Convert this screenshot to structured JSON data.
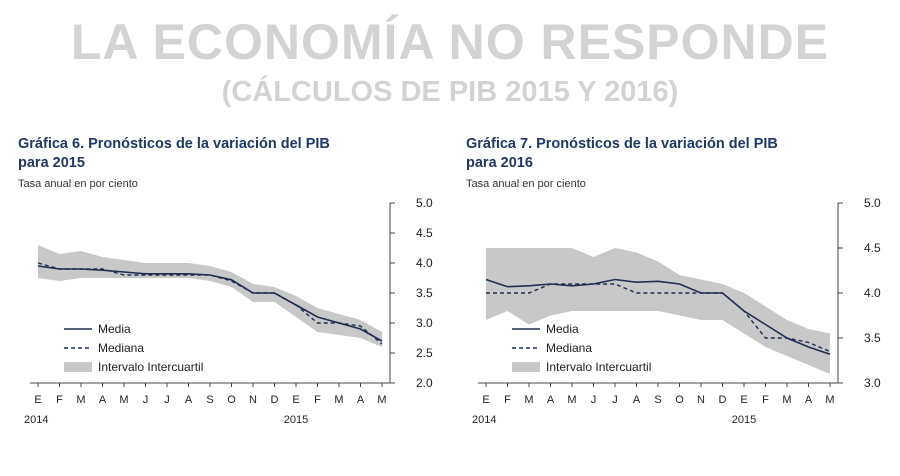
{
  "header": {
    "title": "LA ECONOMÍA NO RESPONDE",
    "subtitle": "(CÁLCULOS DE PIB 2015 Y 2016)"
  },
  "colors": {
    "media": "#1f2d4f",
    "band": "#c8c8c8",
    "title": "#1f3864",
    "headline": "#d3d3d3"
  },
  "chart_data": [
    {
      "type": "line",
      "title": "Gráfica 6. Pronósticos de la variación del PIB para 2015",
      "title_line1": "Gráfica 6. Pronósticos de la variación del PIB",
      "title_line2": "para 2015",
      "subtitle": "Tasa anual en por ciento",
      "categories": [
        "E",
        "F",
        "M",
        "A",
        "M",
        "J",
        "J",
        "A",
        "S",
        "O",
        "N",
        "D",
        "E",
        "F",
        "M",
        "A",
        "M"
      ],
      "year_labels": [
        {
          "label": "2014",
          "at": 0
        },
        {
          "label": "2015",
          "at": 12
        }
      ],
      "ylim": [
        2.0,
        5.0
      ],
      "yticks": [
        "2.0",
        "2.5",
        "3.0",
        "3.5",
        "4.0",
        "4.5",
        "5.0"
      ],
      "yaxis_position": "right",
      "legend_position": "bottom-left",
      "series": [
        {
          "name": "Media",
          "style": "solid",
          "values": [
            3.95,
            3.9,
            3.9,
            3.88,
            3.85,
            3.82,
            3.82,
            3.82,
            3.8,
            3.72,
            3.5,
            3.5,
            3.3,
            3.1,
            3.0,
            2.9,
            2.7
          ]
        },
        {
          "name": "Mediana",
          "style": "dashed",
          "values": [
            4.0,
            3.9,
            3.9,
            3.9,
            3.8,
            3.8,
            3.8,
            3.8,
            3.8,
            3.7,
            3.5,
            3.5,
            3.3,
            3.0,
            3.0,
            2.95,
            2.65
          ]
        }
      ],
      "band": {
        "name": "Intervalo Intercuartil",
        "upper": [
          4.3,
          4.15,
          4.2,
          4.1,
          4.05,
          4.0,
          4.0,
          4.0,
          3.95,
          3.85,
          3.65,
          3.6,
          3.45,
          3.25,
          3.15,
          3.05,
          2.85
        ],
        "lower": [
          3.75,
          3.7,
          3.75,
          3.75,
          3.75,
          3.75,
          3.75,
          3.75,
          3.7,
          3.6,
          3.35,
          3.35,
          3.1,
          2.85,
          2.8,
          2.75,
          2.6
        ]
      }
    },
    {
      "type": "line",
      "title": "Gráfica 7. Pronósticos de la variación del PIB para 2016",
      "title_line1": "Gráfica 7. Pronósticos de la variación del PIB",
      "title_line2": "para 2016",
      "subtitle": "Tasa anual en por ciento",
      "categories": [
        "E",
        "F",
        "M",
        "A",
        "M",
        "J",
        "J",
        "A",
        "S",
        "O",
        "N",
        "D",
        "E",
        "F",
        "M",
        "A",
        "M"
      ],
      "year_labels": [
        {
          "label": "2014",
          "at": 0
        },
        {
          "label": "2015",
          "at": 12
        }
      ],
      "ylim": [
        3.0,
        5.0
      ],
      "yticks": [
        "3.0",
        "3.5",
        "4.0",
        "4.5",
        "5.0"
      ],
      "yaxis_position": "right",
      "legend_position": "bottom-left",
      "series": [
        {
          "name": "Media",
          "style": "solid",
          "values": [
            4.15,
            4.07,
            4.08,
            4.1,
            4.08,
            4.1,
            4.15,
            4.12,
            4.13,
            4.1,
            4.0,
            4.0,
            3.8,
            3.65,
            3.5,
            3.4,
            3.32
          ]
        },
        {
          "name": "Mediana",
          "style": "dashed",
          "values": [
            4.0,
            4.0,
            4.0,
            4.1,
            4.1,
            4.1,
            4.1,
            4.0,
            4.0,
            4.0,
            4.0,
            4.0,
            3.8,
            3.5,
            3.5,
            3.45,
            3.35
          ]
        }
      ],
      "band": {
        "name": "Intervalo Intercuartil",
        "upper": [
          4.5,
          4.5,
          4.5,
          4.5,
          4.5,
          4.4,
          4.5,
          4.45,
          4.35,
          4.2,
          4.15,
          4.1,
          4.0,
          3.85,
          3.7,
          3.6,
          3.55
        ],
        "lower": [
          3.7,
          3.8,
          3.65,
          3.75,
          3.8,
          3.8,
          3.8,
          3.8,
          3.8,
          3.75,
          3.7,
          3.7,
          3.55,
          3.4,
          3.3,
          3.2,
          3.1
        ]
      }
    }
  ]
}
